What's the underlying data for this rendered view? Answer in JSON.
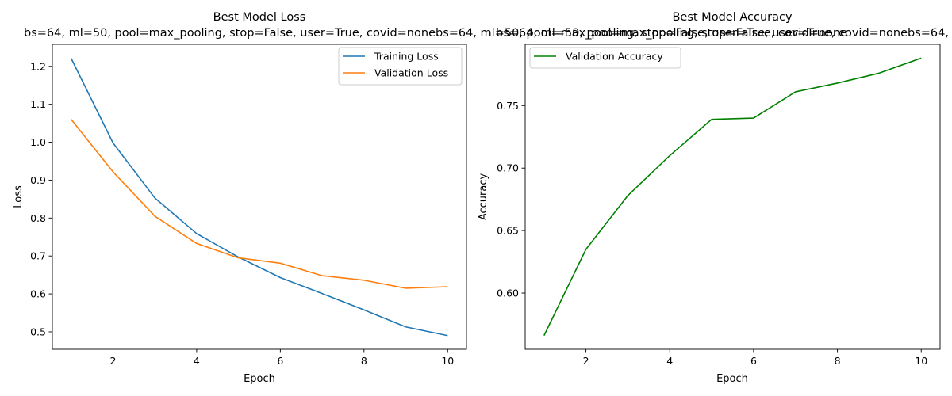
{
  "figure": {
    "subtitle": "bs=64, ml=50, pool=max_pooling, stop=False, user=True, covid=nonebs=64, ml=50, pool=max_pooling, stop=False, user=True, covid=none"
  },
  "chart_data": [
    {
      "type": "line",
      "title": "Best Model Loss",
      "xlabel": "Epoch",
      "ylabel": "Loss",
      "x": [
        1,
        2,
        3,
        4,
        5,
        6,
        7,
        8,
        9,
        10
      ],
      "xlim": [
        0.55,
        10.45
      ],
      "ylim": [
        0.454,
        1.258
      ],
      "xticks": [
        2,
        4,
        6,
        8,
        10
      ],
      "yticks": [
        0.5,
        0.6,
        0.7,
        0.8,
        0.9,
        1.0,
        1.1,
        1.2
      ],
      "ytick_labels": [
        "0.5",
        "0.6",
        "0.7",
        "0.8",
        "0.9",
        "1.0",
        "1.1",
        "1.2"
      ],
      "grid": false,
      "legend": "upper-right",
      "series": [
        {
          "name": "Training Loss",
          "color": "#1f77b4",
          "values": [
            1.221,
            0.998,
            0.853,
            0.759,
            0.697,
            0.643,
            0.601,
            0.558,
            0.513,
            0.49
          ]
        },
        {
          "name": "Validation Loss",
          "color": "#ff7f0e",
          "values": [
            1.06,
            0.922,
            0.805,
            0.733,
            0.695,
            0.681,
            0.648,
            0.636,
            0.615,
            0.619
          ]
        }
      ]
    },
    {
      "type": "line",
      "title": "Best Model Accuracy",
      "xlabel": "Epoch",
      "ylabel": "Accuracy",
      "x": [
        1,
        2,
        3,
        4,
        5,
        6,
        7,
        8,
        9,
        10
      ],
      "xlim": [
        0.55,
        10.45
      ],
      "ylim": [
        0.555,
        0.799
      ],
      "xticks": [
        2,
        4,
        6,
        8,
        10
      ],
      "yticks": [
        0.6,
        0.65,
        0.7,
        0.75
      ],
      "ytick_labels": [
        "0.60",
        "0.65",
        "0.70",
        "0.75"
      ],
      "grid": false,
      "legend": "upper-left",
      "series": [
        {
          "name": "Validation Accuracy",
          "color": "#008000",
          "values": [
            0.566,
            0.635,
            0.678,
            0.71,
            0.739,
            0.74,
            0.761,
            0.768,
            0.776,
            0.788
          ]
        }
      ]
    }
  ]
}
